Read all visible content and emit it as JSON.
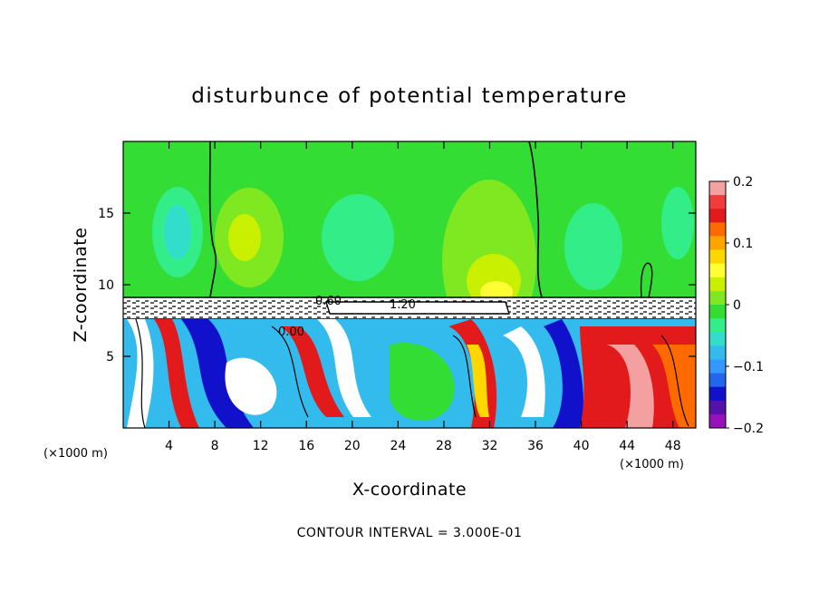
{
  "chart_data": {
    "type": "heatmap",
    "title": "disturbunce of potential temperature",
    "xlabel": "X-coordinate",
    "ylabel": "Z-coordinate",
    "x_unit": "(×1000 m)",
    "x_unit_right": "(×1000 m)",
    "xlim": [
      0,
      50
    ],
    "ylim": [
      0,
      20
    ],
    "x_ticks": [
      4,
      8,
      12,
      16,
      20,
      24,
      28,
      32,
      36,
      40,
      44,
      48
    ],
    "y_ticks": [
      5,
      10,
      15
    ],
    "colorbar": {
      "range": [
        -0.2,
        0.2
      ],
      "tick_values": [
        0.2,
        0.1,
        0,
        -0.1,
        -0.2
      ],
      "tick_labels": [
        "0.2",
        "0.1",
        "0",
        "−0.1",
        "−0.2"
      ],
      "colors": [
        "#f5a0a0",
        "#f03c3c",
        "#e31a1c",
        "#ff6a00",
        "#ffa500",
        "#ffd700",
        "#ffff33",
        "#c8f000",
        "#80e820",
        "#33dd33",
        "#33ee88",
        "#33ddcc",
        "#33bbee",
        "#3399ff",
        "#2266ee",
        "#1111cc",
        "#5511aa",
        "#9911bb"
      ]
    },
    "contour_labels": [
      "0.60",
      "1.20",
      "0.00"
    ],
    "footer": "CONTOUR INTERVAL = 3.000E-01",
    "regions": [
      {
        "x": [
          0,
          50
        ],
        "z": [
          9.2,
          20
        ],
        "value": 0.0
      },
      {
        "x": [
          3,
          6
        ],
        "z": [
          11,
          17
        ],
        "value": -0.07
      },
      {
        "x": [
          9,
          14
        ],
        "z": [
          11,
          17
        ],
        "value": 0.05
      },
      {
        "x": [
          26,
          34
        ],
        "z": [
          9.2,
          14
        ],
        "value": 0.09
      },
      {
        "x": [
          37,
          42
        ],
        "z": [
          11,
          17
        ],
        "value": -0.04
      },
      {
        "x": [
          0,
          50
        ],
        "z": [
          0,
          8
        ],
        "value": -0.12
      },
      {
        "x": [
          21,
          28
        ],
        "z": [
          0.5,
          7
        ],
        "value": 0.02
      },
      {
        "x": [
          28,
          33
        ],
        "z": [
          0.5,
          7
        ],
        "value": 0.13
      },
      {
        "x": [
          40,
          49
        ],
        "z": [
          0.5,
          7
        ],
        "value": 0.14
      }
    ]
  }
}
